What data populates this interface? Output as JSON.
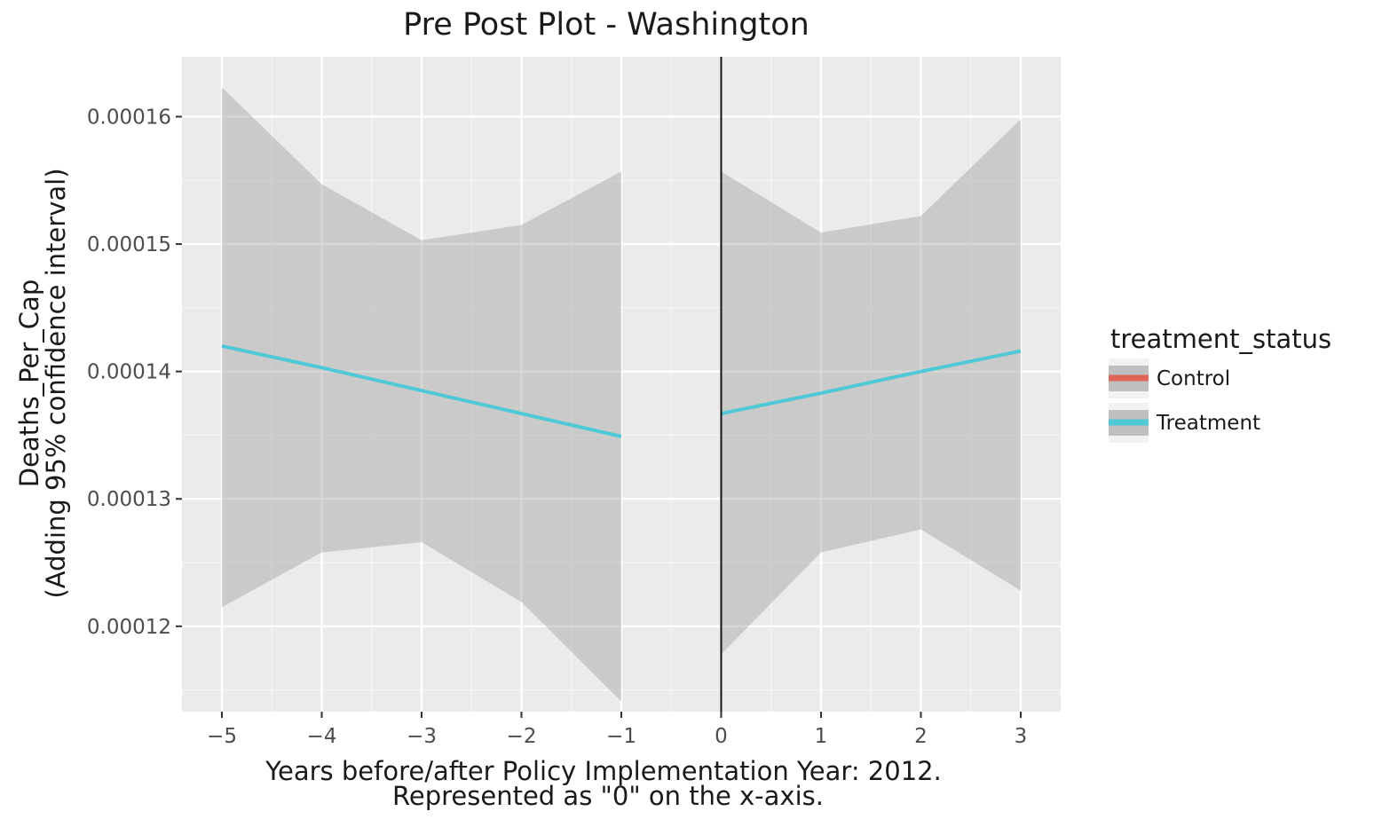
{
  "chart_data": {
    "type": "line",
    "title": "Pre Post Plot - Washington",
    "xlabel_lines": [
      "Years before/after Policy Implementation Year: 2012.",
      "Represented as \"0\" on the x-axis."
    ],
    "ylabel_lines": [
      "Deaths_Per_Cap",
      "(Adding 95% confidence interval)"
    ],
    "x_ticks": [
      "−5",
      "−4",
      "−3",
      "−2",
      "−1",
      "0",
      "1",
      "2",
      "3"
    ],
    "x_tick_values": [
      -5,
      -4,
      -3,
      -2,
      -1,
      0,
      1,
      2,
      3
    ],
    "y_ticks": [
      "0.00012",
      "0.00013",
      "0.00014",
      "0.00015",
      "0.00016"
    ],
    "y_tick_values": [
      0.00012,
      0.00013,
      0.00014,
      0.00015,
      0.00016
    ],
    "xlim": [
      -5.4,
      3.4
    ],
    "ylim": [
      0.0001133,
      0.0001647
    ],
    "grid": true,
    "vertical_line_x": 0,
    "series": [
      {
        "name": "Treatment",
        "segment": "pre",
        "color": "#4fc9d6",
        "x": [
          -5,
          -4,
          -3,
          -2,
          -1
        ],
        "y": [
          0.000142,
          0.0001403,
          0.0001385,
          0.0001367,
          0.0001349
        ],
        "ci_upper": [
          0.0001623,
          0.0001547,
          0.0001503,
          0.0001515,
          0.0001557
        ],
        "ci_lower": [
          0.0001215,
          0.0001258,
          0.0001266,
          0.0001219,
          0.0001141
        ]
      },
      {
        "name": "Treatment",
        "segment": "post",
        "color": "#4fc9d6",
        "x": [
          0,
          1,
          2,
          3
        ],
        "y": [
          0.0001367,
          0.0001383,
          0.00014,
          0.0001416
        ],
        "ci_upper": [
          0.0001557,
          0.0001509,
          0.0001522,
          0.0001598
        ],
        "ci_lower": [
          0.0001178,
          0.0001258,
          0.0001276,
          0.0001228
        ]
      }
    ],
    "legend": {
      "title": "treatment_status",
      "position": "right",
      "items": [
        {
          "label": "Control",
          "color": "#e0645a"
        },
        {
          "label": "Treatment",
          "color": "#4fc9d6"
        }
      ]
    }
  }
}
